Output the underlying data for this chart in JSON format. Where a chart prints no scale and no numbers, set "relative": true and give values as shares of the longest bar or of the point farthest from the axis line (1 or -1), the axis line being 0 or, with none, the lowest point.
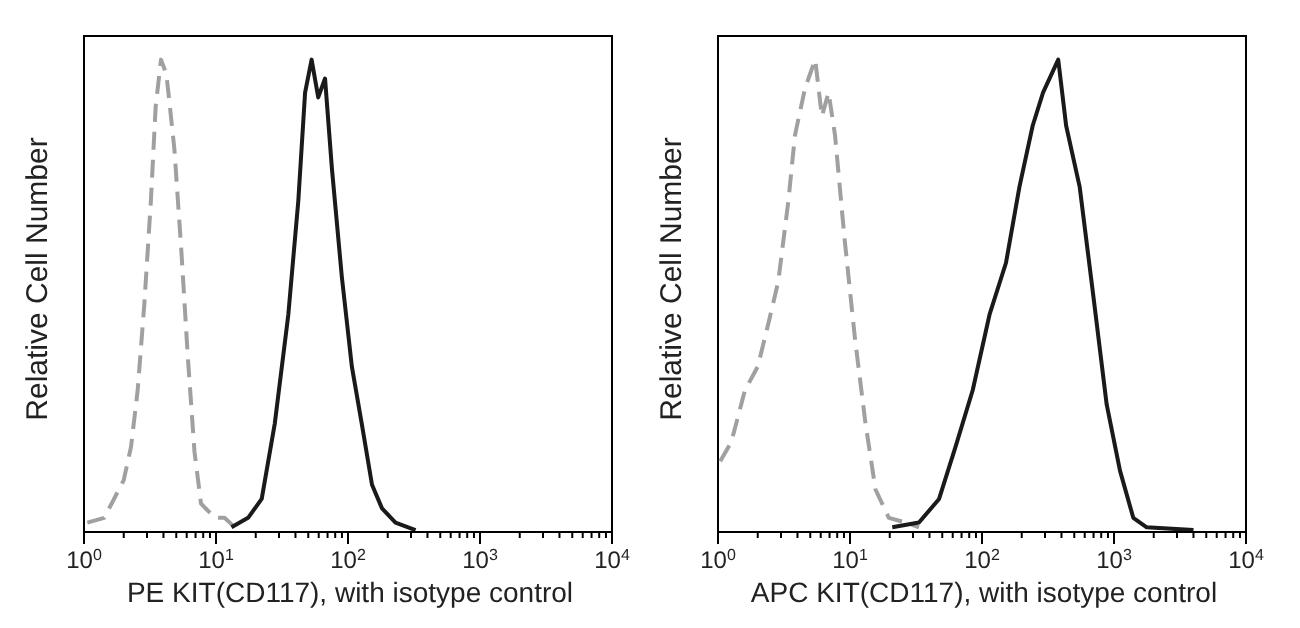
{
  "chart_data": [
    {
      "type": "line",
      "xlabel": "PE KIT(CD117), with isotype control",
      "ylabel": "Relative Cell Number",
      "relative": true,
      "log": "x",
      "marker": "none",
      "xlim": [
        1,
        10000
      ],
      "xticks": [
        {
          "value": 1,
          "label": "10$^{0}$"
        },
        {
          "value": 2,
          "label": null
        },
        {
          "value": 3,
          "label": null
        },
        {
          "value": 4,
          "label": null
        },
        {
          "value": 5,
          "label": null
        },
        {
          "value": 6,
          "label": null
        },
        {
          "value": 7,
          "label": null
        },
        {
          "value": 8,
          "label": null
        },
        {
          "value": 9,
          "label": null
        },
        {
          "value": 10,
          "label": "10$^{1}$"
        },
        {
          "value": 20,
          "label": null
        },
        {
          "value": 30,
          "label": null
        },
        {
          "value": 40,
          "label": null
        },
        {
          "value": 50,
          "label": null
        },
        {
          "value": 60,
          "label": null
        },
        {
          "value": 70,
          "label": null
        },
        {
          "value": 80,
          "label": null
        },
        {
          "value": 90,
          "label": null
        },
        {
          "value": 100,
          "label": "10$^{2}$"
        },
        {
          "value": 200,
          "label": null
        },
        {
          "value": 300,
          "label": null
        },
        {
          "value": 400,
          "label": null
        },
        {
          "value": 500,
          "label": null
        },
        {
          "value": 600,
          "label": null
        },
        {
          "value": 700,
          "label": null
        },
        {
          "value": 800,
          "label": null
        },
        {
          "value": 900,
          "label": null
        },
        {
          "value": 1000,
          "label": "10$^{3}$"
        },
        {
          "value": 2000,
          "label": null
        },
        {
          "value": 3000,
          "label": null
        },
        {
          "value": 4000,
          "label": null
        },
        {
          "value": 5000,
          "label": null
        },
        {
          "value": 6000,
          "label": null
        },
        {
          "value": 7000,
          "label": null
        },
        {
          "value": 8000,
          "label": null
        },
        {
          "value": 9000,
          "label": null
        },
        {
          "value": 10000,
          "label": "10$^{4}$"
        }
      ],
      "series": [
        {
          "color": "#a0a0a0",
          "line_style": "dashed",
          "x": [
            1.06,
            1.42,
            1.69,
            2.0,
            2.27,
            2.55,
            2.86,
            3.21,
            3.49,
            3.83,
            4.2,
            4.4,
            4.84,
            5.45,
            6.12,
            6.87,
            7.7,
            9.8,
            11.6,
            13.9
          ],
          "values": [
            0.02,
            0.03,
            0.07,
            0.11,
            0.18,
            0.3,
            0.48,
            0.7,
            0.9,
            1.0,
            0.97,
            0.92,
            0.81,
            0.6,
            0.37,
            0.17,
            0.06,
            0.03,
            0.03,
            0.01
          ]
        },
        {
          "color": "#1a1a1a",
          "line_style": "solid",
          "x": [
            13.1,
            17.5,
            22.2,
            27.9,
            35.3,
            42,
            47.3,
            53,
            59.5,
            67,
            75.5,
            89.8,
            107,
            127,
            152,
            181,
            229,
            325
          ],
          "values": [
            0.01,
            0.03,
            0.07,
            0.23,
            0.46,
            0.7,
            0.93,
            1.0,
            0.92,
            0.96,
            0.77,
            0.54,
            0.35,
            0.23,
            0.1,
            0.05,
            0.02,
            0.004
          ]
        }
      ]
    },
    {
      "type": "line",
      "xlabel": "APC KIT(CD117), with isotype control",
      "ylabel": "Relative Cell Number",
      "relative": true,
      "log": "x",
      "marker": "none",
      "xlim": [
        1,
        10000
      ],
      "xticks": [
        {
          "value": 1,
          "label": "10$^{0}$"
        },
        {
          "value": 2,
          "label": null
        },
        {
          "value": 3,
          "label": null
        },
        {
          "value": 4,
          "label": null
        },
        {
          "value": 5,
          "label": null
        },
        {
          "value": 6,
          "label": null
        },
        {
          "value": 7,
          "label": null
        },
        {
          "value": 8,
          "label": null
        },
        {
          "value": 9,
          "label": null
        },
        {
          "value": 10,
          "label": "10$^{1}$"
        },
        {
          "value": 20,
          "label": null
        },
        {
          "value": 30,
          "label": null
        },
        {
          "value": 40,
          "label": null
        },
        {
          "value": 50,
          "label": null
        },
        {
          "value": 60,
          "label": null
        },
        {
          "value": 70,
          "label": null
        },
        {
          "value": 80,
          "label": null
        },
        {
          "value": 90,
          "label": null
        },
        {
          "value": 100,
          "label": "10$^{2}$"
        },
        {
          "value": 200,
          "label": null
        },
        {
          "value": 300,
          "label": null
        },
        {
          "value": 400,
          "label": null
        },
        {
          "value": 500,
          "label": null
        },
        {
          "value": 600,
          "label": null
        },
        {
          "value": 700,
          "label": null
        },
        {
          "value": 800,
          "label": null
        },
        {
          "value": 900,
          "label": null
        },
        {
          "value": 1000,
          "label": "10$^{3}$"
        },
        {
          "value": 2000,
          "label": null
        },
        {
          "value": 3000,
          "label": null
        },
        {
          "value": 4000,
          "label": null
        },
        {
          "value": 5000,
          "label": null
        },
        {
          "value": 6000,
          "label": null
        },
        {
          "value": 7000,
          "label": null
        },
        {
          "value": 8000,
          "label": null
        },
        {
          "value": 9000,
          "label": null
        },
        {
          "value": 10000,
          "label": "10$^{4}$"
        }
      ],
      "series": [
        {
          "color": "#a0a0a0",
          "line_style": "dashed",
          "x": [
            1.04,
            1.26,
            1.6,
            2.0,
            2.4,
            2.86,
            3.41,
            3.83,
            4.57,
            5.45,
            6.12,
            6.88,
            7.7,
            9.1,
            10.9,
            13.1,
            15.6,
            19.7,
            26.4,
            33.3
          ],
          "values": [
            0.15,
            0.19,
            0.3,
            0.35,
            0.44,
            0.53,
            0.7,
            0.84,
            0.94,
            1.0,
            0.88,
            0.93,
            0.84,
            0.62,
            0.41,
            0.23,
            0.09,
            0.03,
            0.02,
            0.01
          ]
        },
        {
          "color": "#1a1a1a",
          "line_style": "solid",
          "x": [
            20.9,
            33.3,
            47.3,
            63,
            85,
            114,
            152,
            192,
            242,
            290,
            378,
            434,
            550,
            697,
            880,
            1110,
            1400,
            1770,
            4000
          ],
          "values": [
            0.01,
            0.02,
            0.07,
            0.18,
            0.3,
            0.46,
            0.57,
            0.73,
            0.86,
            0.93,
            1.0,
            0.86,
            0.73,
            0.5,
            0.27,
            0.13,
            0.03,
            0.01,
            0.004
          ]
        }
      ]
    }
  ]
}
